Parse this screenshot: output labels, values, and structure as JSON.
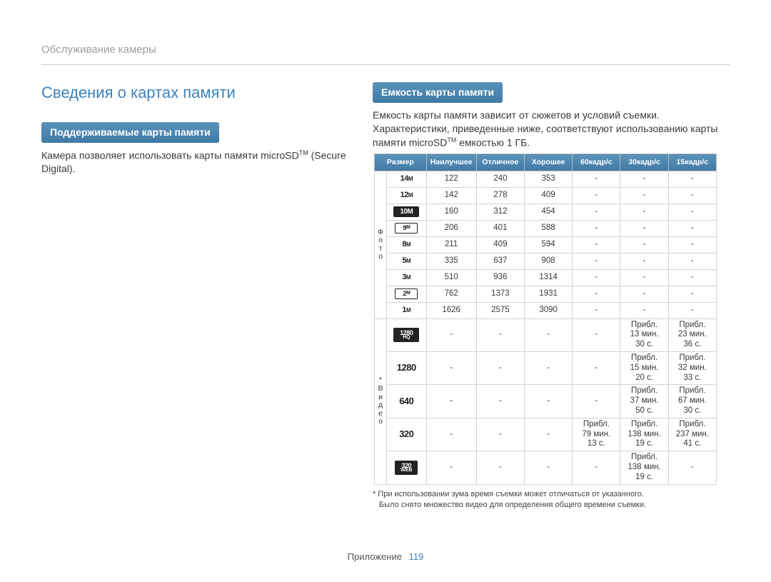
{
  "breadcrumb": "Обслуживание камеры",
  "page_title": "Сведения о картах памяти",
  "left": {
    "bar": "Поддерживаемые карты памяти",
    "text_a": "Камера позволяет использовать карты памяти microSD",
    "tm": "TM",
    "text_b": " (Secure Digital)."
  },
  "right": {
    "bar": "Емкость карты памяти",
    "text_a": "Емкость карты памяти зависит от сюжетов и условий съемки. Характеристики, приведенные ниже, соответствуют использованию карты памяти microSD",
    "tm": "TM",
    "text_b": " емкостью 1 ГБ."
  },
  "table": {
    "headers": [
      "Размер",
      "Наилучшее",
      "Отличное",
      "Хорошее",
      "60кадр/с",
      "30кадр/с",
      "15кадр/с"
    ],
    "group_photo_label": "Фото",
    "group_video_label": "* Видео",
    "photo_rows": [
      {
        "icon": "14m",
        "vals": [
          "122",
          "240",
          "353",
          "-",
          "-",
          "-"
        ]
      },
      {
        "icon": "12m",
        "vals": [
          "142",
          "278",
          "409",
          "-",
          "-",
          "-"
        ]
      },
      {
        "icon": "10w",
        "vals": [
          "160",
          "312",
          "454",
          "-",
          "-",
          "-"
        ]
      },
      {
        "icon": "9o",
        "vals": [
          "206",
          "401",
          "588",
          "-",
          "-",
          "-"
        ]
      },
      {
        "icon": "8m",
        "vals": [
          "211",
          "409",
          "594",
          "-",
          "-",
          "-"
        ]
      },
      {
        "icon": "5m",
        "vals": [
          "335",
          "637",
          "908",
          "-",
          "-",
          "-"
        ]
      },
      {
        "icon": "3m",
        "vals": [
          "510",
          "936",
          "1314",
          "-",
          "-",
          "-"
        ]
      },
      {
        "icon": "2o",
        "vals": [
          "762",
          "1373",
          "1931",
          "-",
          "-",
          "-"
        ]
      },
      {
        "icon": "1m",
        "vals": [
          "1626",
          "2575",
          "3090",
          "-",
          "-",
          "-"
        ]
      }
    ],
    "video_rows": [
      {
        "icon": "1280hq",
        "vals": [
          "-",
          "-",
          "-",
          "-",
          "Прибл. 13 мин. 30 с.",
          "Прибл. 23 мин. 36 с."
        ]
      },
      {
        "icon": "1280",
        "vals": [
          "-",
          "-",
          "-",
          "-",
          "Прибл. 15 мин. 20 с.",
          "Прибл. 32 мин. 33 с."
        ]
      },
      {
        "icon": "640",
        "vals": [
          "-",
          "-",
          "-",
          "-",
          "Прибл. 37 мин. 50 с.",
          "Прибл. 67 мин. 30 с."
        ]
      },
      {
        "icon": "320",
        "vals": [
          "-",
          "-",
          "-",
          "Прибл. 79 мин. 13 с.",
          "Прибл. 138 мин. 19 с.",
          "Прибл. 237 мин. 41 с."
        ]
      },
      {
        "icon": "320web",
        "vals": [
          "-",
          "-",
          "-",
          "-",
          "Прибл. 138 мин. 19 с.",
          "-"
        ]
      }
    ],
    "footnote_a": "* При использовании зума время съемки может отличаться от указанного.",
    "footnote_b": "Было снято множество видео для определения общего времени съемки."
  },
  "footer": {
    "section": "Приложение",
    "page": "119"
  },
  "colors": {
    "title": "#3d83bb",
    "bar_top": "#5c93bb",
    "bar_bottom": "#3f7aa6"
  }
}
